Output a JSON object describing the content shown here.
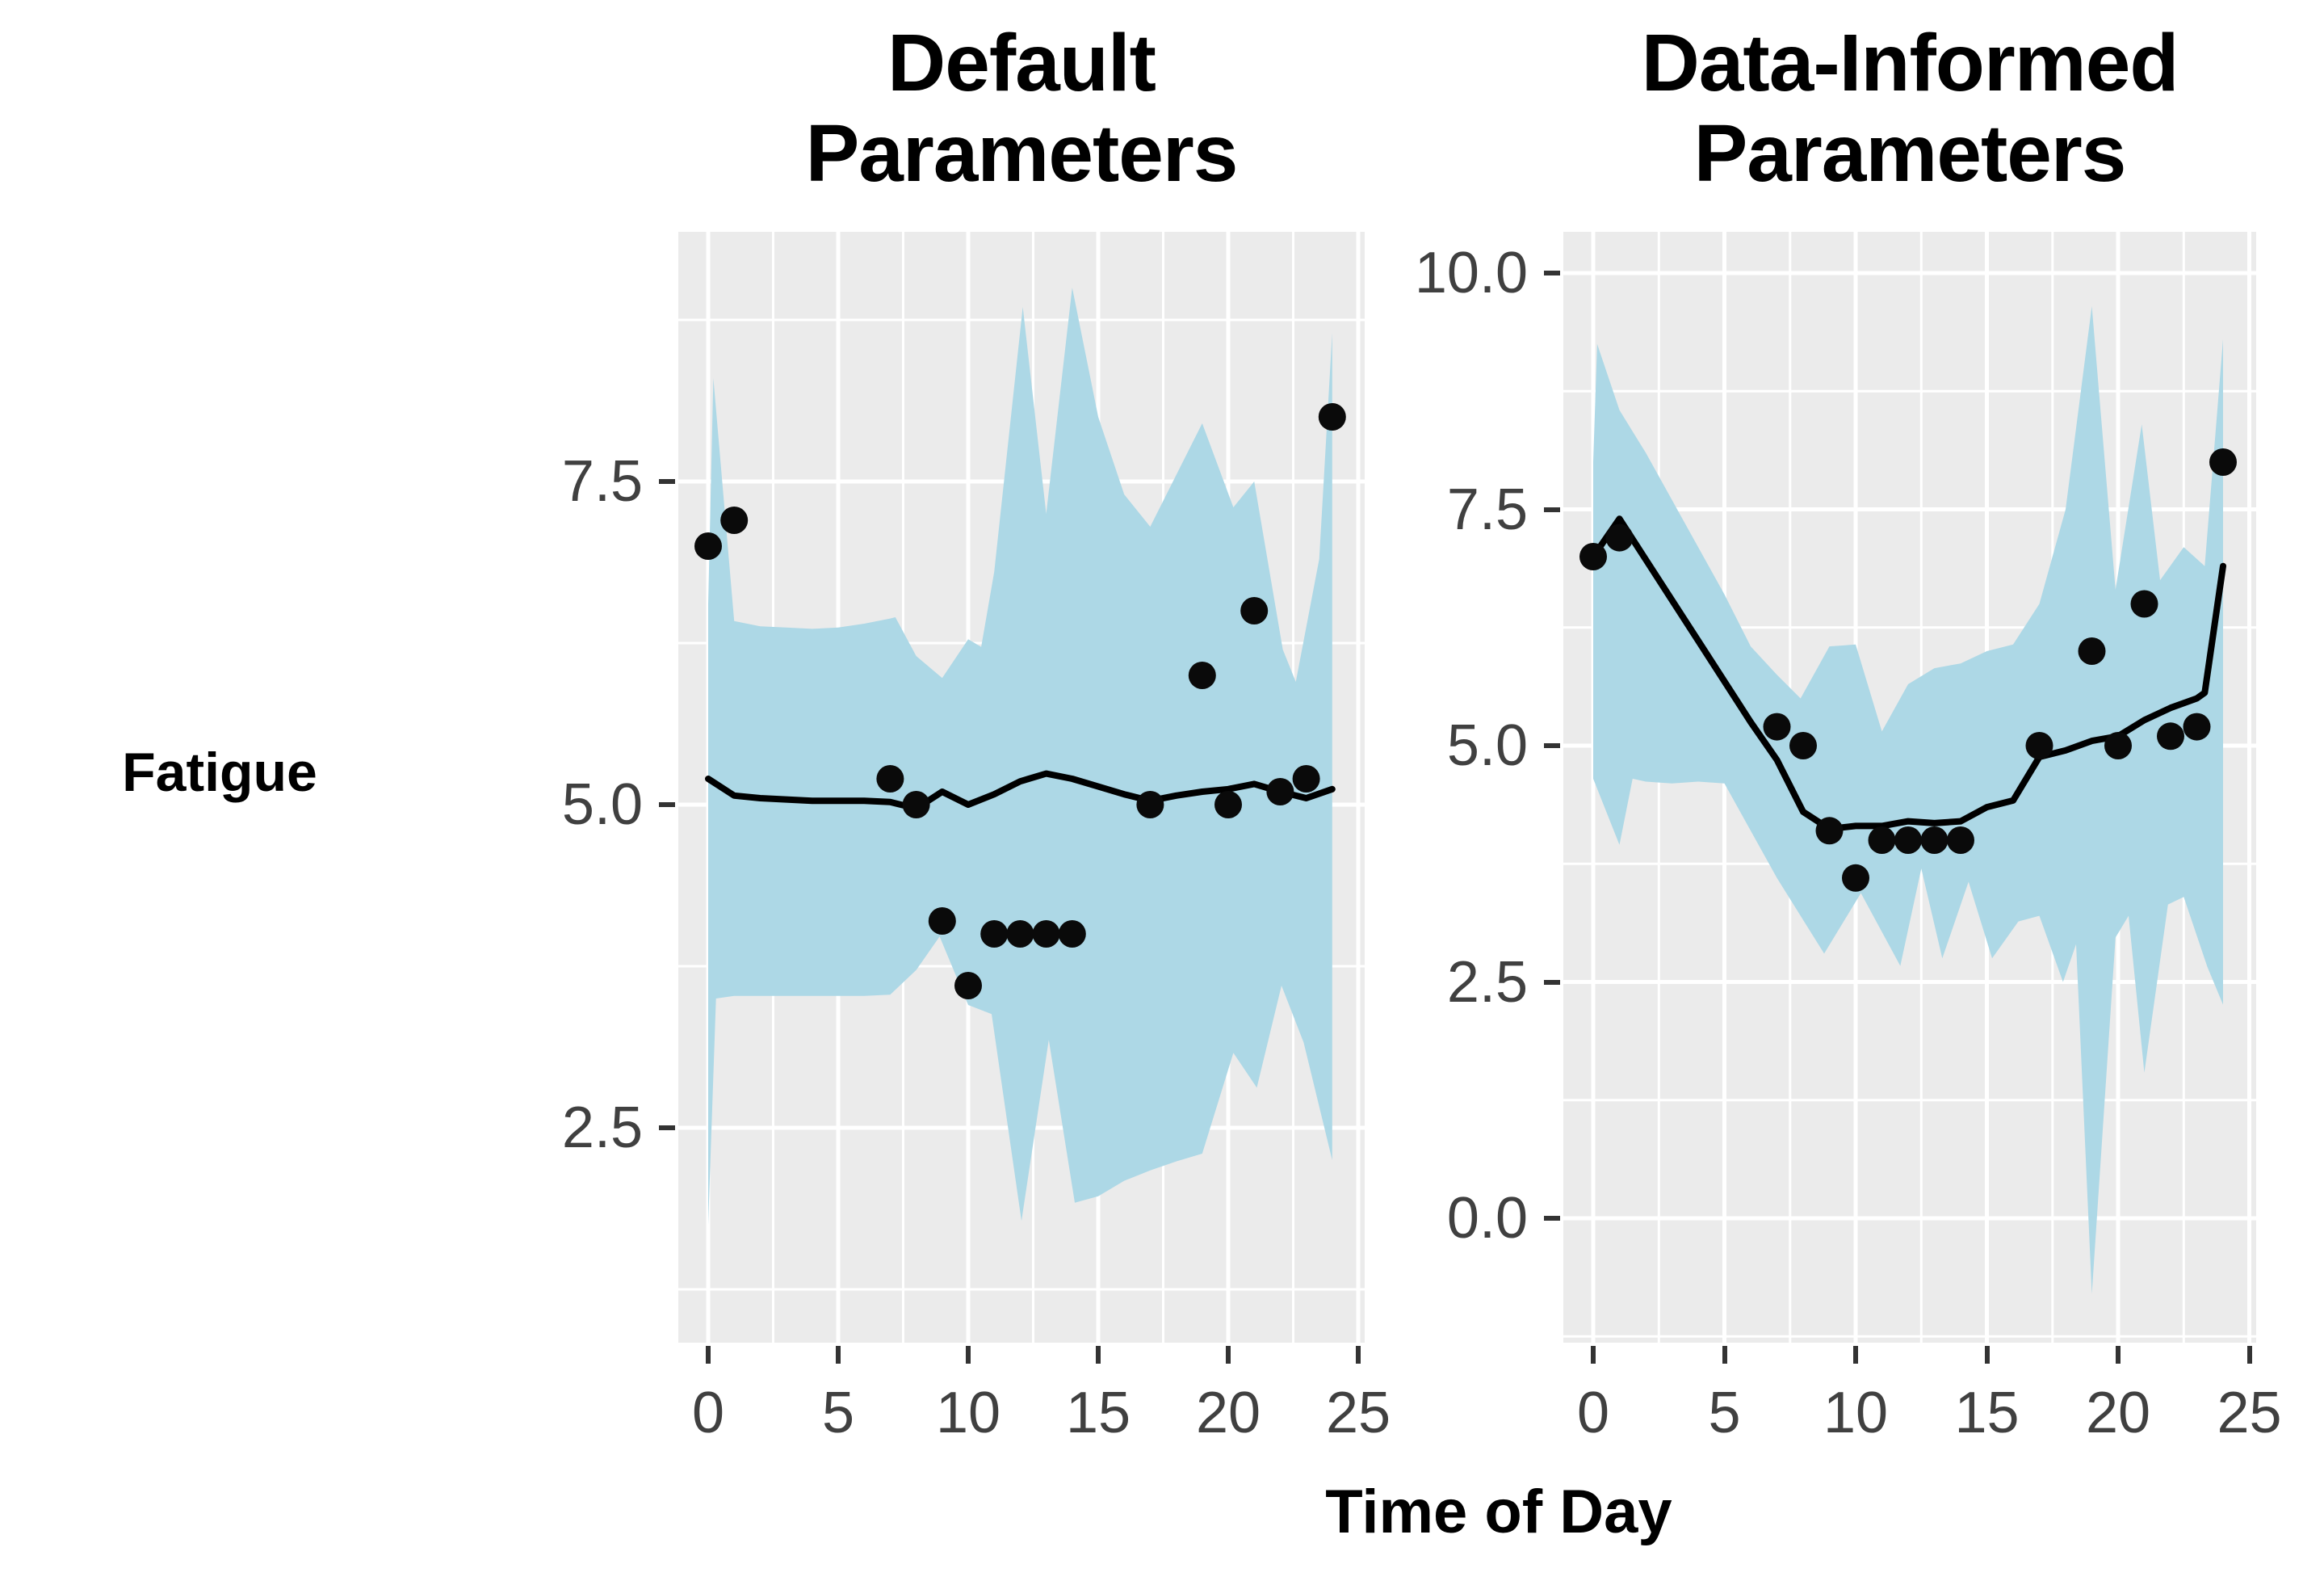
{
  "page": {
    "background": "#ffffff"
  },
  "labels": {
    "y_axis": "Fatigue",
    "x_axis": "Time of Day",
    "left_title_line1": "Default",
    "left_title_line2": "Parameters",
    "right_title_line1": "Data-Informed",
    "right_title_line2": "Parameters"
  },
  "colors": {
    "panel_bg": "#EBEBEB",
    "grid": "#FFFFFF",
    "ribbon": "#ADD8E6",
    "line": "#000000",
    "point": "#0a0a0a",
    "tick_text": "#404040",
    "tick_mark": "#333333"
  },
  "chart_data": [
    {
      "type": "line",
      "subtype": "scatter+fit-line+confidence-ribbon",
      "title": "Default Parameters",
      "xlabel": "Time of Day",
      "ylabel": "Fatigue",
      "xlim": [
        -1.2,
        25.2
      ],
      "ylim": [
        0.84,
        9.43
      ],
      "grid": true,
      "legend": "none",
      "x_ticks": [
        0,
        5,
        10,
        15,
        20,
        25
      ],
      "x_tick_labels": [
        "0",
        "5",
        "10",
        "15",
        "20",
        "25"
      ],
      "x_minor": [
        2.5,
        7.5,
        12.5,
        17.5,
        22.5
      ],
      "y_ticks": [
        2.5,
        5.0,
        7.5
      ],
      "y_tick_labels": [
        "2.5",
        "5.0",
        "7.5"
      ],
      "y_minor": [
        1.25,
        3.75,
        6.25,
        8.75
      ],
      "points": [
        [
          0,
          7.0
        ],
        [
          1,
          7.2
        ],
        [
          7,
          5.2
        ],
        [
          8,
          5.0
        ],
        [
          9,
          4.1
        ],
        [
          10,
          3.6
        ],
        [
          11,
          4.0
        ],
        [
          12,
          4.0
        ],
        [
          13,
          4.0
        ],
        [
          14,
          4.0
        ],
        [
          17,
          5.0
        ],
        [
          19,
          6.0
        ],
        [
          20,
          5.0
        ],
        [
          21,
          6.5
        ],
        [
          22,
          5.1
        ],
        [
          23,
          5.2
        ],
        [
          24,
          8.0
        ]
      ],
      "line": [
        [
          0,
          5.2
        ],
        [
          1,
          5.07
        ],
        [
          2,
          5.05
        ],
        [
          3,
          5.04
        ],
        [
          4,
          5.03
        ],
        [
          5,
          5.03
        ],
        [
          6,
          5.03
        ],
        [
          7,
          5.02
        ],
        [
          8,
          4.97
        ],
        [
          9,
          5.1
        ],
        [
          10,
          5.0
        ],
        [
          11,
          5.08
        ],
        [
          12,
          5.18
        ],
        [
          13,
          5.24
        ],
        [
          14,
          5.2
        ],
        [
          15,
          5.14
        ],
        [
          16,
          5.08
        ],
        [
          17,
          5.03
        ],
        [
          18,
          5.07
        ],
        [
          19,
          5.1
        ],
        [
          20,
          5.12
        ],
        [
          21,
          5.16
        ],
        [
          22,
          5.1
        ],
        [
          23,
          5.05
        ],
        [
          24,
          5.12
        ]
      ],
      "ribbon_upper": [
        [
          0,
          6.55
        ],
        [
          0.2,
          8.3
        ],
        [
          1,
          6.42
        ],
        [
          2,
          6.38
        ],
        [
          3,
          6.37
        ],
        [
          4,
          6.36
        ],
        [
          5,
          6.37
        ],
        [
          6,
          6.4
        ],
        [
          7,
          6.44
        ],
        [
          7.2,
          6.45
        ],
        [
          8,
          6.15
        ],
        [
          9,
          5.98
        ],
        [
          10,
          6.28
        ],
        [
          10.5,
          6.22
        ],
        [
          11,
          6.8
        ],
        [
          12.1,
          8.85
        ],
        [
          13,
          7.25
        ],
        [
          14,
          9.0
        ],
        [
          15,
          8.0
        ],
        [
          16,
          7.4
        ],
        [
          17,
          7.15
        ],
        [
          18,
          7.55
        ],
        [
          19,
          7.95
        ],
        [
          20.2,
          7.3
        ],
        [
          21,
          7.5
        ],
        [
          22.1,
          6.2
        ],
        [
          22.6,
          5.95
        ],
        [
          23.5,
          6.9
        ],
        [
          24,
          8.65
        ]
      ],
      "ribbon_lower": [
        [
          0,
          1.75
        ],
        [
          0.3,
          3.5
        ],
        [
          1,
          3.52
        ],
        [
          2,
          3.52
        ],
        [
          3,
          3.52
        ],
        [
          4,
          3.52
        ],
        [
          5,
          3.52
        ],
        [
          6,
          3.52
        ],
        [
          7,
          3.53
        ],
        [
          8,
          3.72
        ],
        [
          8.9,
          3.98
        ],
        [
          10,
          3.45
        ],
        [
          10.9,
          3.38
        ],
        [
          12.05,
          1.78
        ],
        [
          13.1,
          3.18
        ],
        [
          14.1,
          1.92
        ],
        [
          15,
          1.97
        ],
        [
          16,
          2.09
        ],
        [
          17,
          2.17
        ],
        [
          18,
          2.24
        ],
        [
          19,
          2.3
        ],
        [
          20.2,
          3.08
        ],
        [
          21.1,
          2.81
        ],
        [
          22.05,
          3.6
        ],
        [
          22.9,
          3.16
        ],
        [
          24,
          2.25
        ]
      ]
    },
    {
      "type": "line",
      "subtype": "scatter+fit-line+confidence-ribbon",
      "title": "Data-Informed Parameters",
      "xlabel": "Time of Day",
      "ylabel": "Fatigue",
      "xlim": [
        -1.2,
        25.2
      ],
      "ylim": [
        -1.32,
        10.44
      ],
      "grid": true,
      "legend": "none",
      "x_ticks": [
        0,
        5,
        10,
        15,
        20,
        25
      ],
      "x_tick_labels": [
        "0",
        "5",
        "10",
        "15",
        "20",
        "25"
      ],
      "x_minor": [
        2.5,
        7.5,
        12.5,
        17.5,
        22.5
      ],
      "y_ticks": [
        0.0,
        2.5,
        5.0,
        7.5,
        10.0
      ],
      "y_tick_labels": [
        "0.0",
        "2.5",
        "5.0",
        "7.5",
        "10.0"
      ],
      "y_minor": [
        -1.25,
        1.25,
        3.75,
        6.25,
        8.75
      ],
      "points": [
        [
          0,
          7.0
        ],
        [
          1,
          7.2
        ],
        [
          7,
          5.2
        ],
        [
          8,
          5.0
        ],
        [
          9,
          4.1
        ],
        [
          10,
          3.6
        ],
        [
          11,
          4.0
        ],
        [
          12,
          4.0
        ],
        [
          13,
          4.0
        ],
        [
          14,
          4.0
        ],
        [
          17,
          5.0
        ],
        [
          19,
          6.0
        ],
        [
          20,
          5.0
        ],
        [
          21,
          6.5
        ],
        [
          22,
          5.1
        ],
        [
          23,
          5.2
        ],
        [
          24,
          8.0
        ]
      ],
      "line": [
        [
          0,
          7.0
        ],
        [
          1,
          7.4
        ],
        [
          2,
          6.97
        ],
        [
          3,
          6.54
        ],
        [
          4,
          6.11
        ],
        [
          5,
          5.68
        ],
        [
          6,
          5.25
        ],
        [
          7,
          4.85
        ],
        [
          8,
          4.3
        ],
        [
          9,
          4.12
        ],
        [
          10,
          4.15
        ],
        [
          11,
          4.15
        ],
        [
          12,
          4.2
        ],
        [
          13,
          4.18
        ],
        [
          14,
          4.2
        ],
        [
          15,
          4.35
        ],
        [
          16,
          4.42
        ],
        [
          17,
          4.88
        ],
        [
          18,
          4.95
        ],
        [
          19,
          5.05
        ],
        [
          20,
          5.1
        ],
        [
          21,
          5.27
        ],
        [
          22,
          5.4
        ],
        [
          23,
          5.5
        ],
        [
          23.3,
          5.56
        ],
        [
          24,
          6.9
        ]
      ],
      "ribbon_upper": [
        [
          0,
          8.0
        ],
        [
          0.15,
          9.25
        ],
        [
          1,
          8.55
        ],
        [
          2,
          8.1
        ],
        [
          3,
          7.6
        ],
        [
          4,
          7.1
        ],
        [
          5,
          6.6
        ],
        [
          6,
          6.05
        ],
        [
          7,
          5.75
        ],
        [
          7.9,
          5.5
        ],
        [
          9,
          6.05
        ],
        [
          10,
          6.07
        ],
        [
          11,
          5.15
        ],
        [
          12,
          5.65
        ],
        [
          13,
          5.82
        ],
        [
          14,
          5.87
        ],
        [
          15,
          6.0
        ],
        [
          16,
          6.07
        ],
        [
          17,
          6.5
        ],
        [
          18,
          7.5
        ],
        [
          19,
          9.65
        ],
        [
          19.9,
          6.65
        ],
        [
          20.9,
          8.4
        ],
        [
          21.6,
          6.75
        ],
        [
          22.5,
          7.1
        ],
        [
          23.3,
          6.9
        ],
        [
          24,
          9.3
        ]
      ],
      "ribbon_lower": [
        [
          0,
          4.65
        ],
        [
          1,
          3.95
        ],
        [
          1.5,
          4.65
        ],
        [
          2,
          4.62
        ],
        [
          3,
          4.6
        ],
        [
          4,
          4.62
        ],
        [
          5,
          4.6
        ],
        [
          6,
          4.1
        ],
        [
          7,
          3.6
        ],
        [
          8.8,
          2.8
        ],
        [
          10.2,
          3.44
        ],
        [
          11.7,
          2.67
        ],
        [
          12.5,
          3.7
        ],
        [
          13.3,
          2.75
        ],
        [
          14.3,
          3.56
        ],
        [
          15.2,
          2.75
        ],
        [
          16.2,
          3.14
        ],
        [
          17,
          3.2
        ],
        [
          17.9,
          2.5
        ],
        [
          18.4,
          2.9
        ],
        [
          19,
          -0.8
        ],
        [
          19.9,
          2.97
        ],
        [
          20.4,
          3.2
        ],
        [
          21,
          1.54
        ],
        [
          21.9,
          3.32
        ],
        [
          22.5,
          3.4
        ],
        [
          23.4,
          2.66
        ],
        [
          24,
          2.26
        ]
      ]
    }
  ]
}
